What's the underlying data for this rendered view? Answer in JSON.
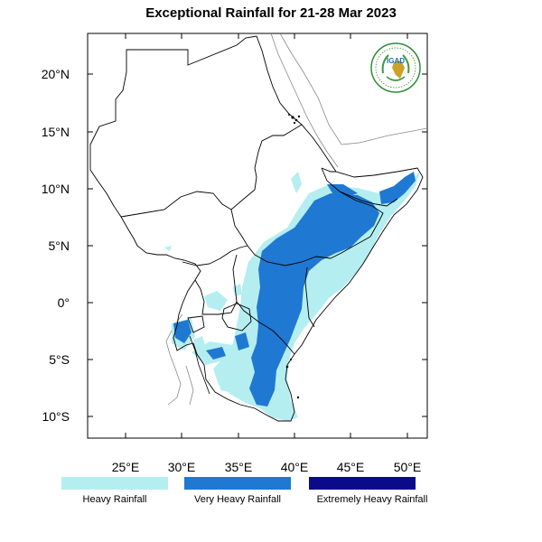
{
  "title": "Exceptional Rainfall for 21-28 Mar 2023",
  "logo": {
    "text": "IGAD",
    "icon": "igad-logo-icon"
  },
  "axes": {
    "lon_ticks": [
      "25°E",
      "30°E",
      "35°E",
      "40°E",
      "45°E",
      "50°E"
    ],
    "lat_ticks": [
      "20°N",
      "15°N",
      "10°N",
      "5°N",
      "0°",
      "5°S",
      "10°S"
    ]
  },
  "legend": [
    {
      "label": "Heavy Rainfall",
      "color": "#b4eef0"
    },
    {
      "label": "Very Heavy Rainfall",
      "color": "#1f78d2"
    },
    {
      "label": "Extremely Heavy Rainfall",
      "color": "#0a0a8a"
    }
  ]
}
